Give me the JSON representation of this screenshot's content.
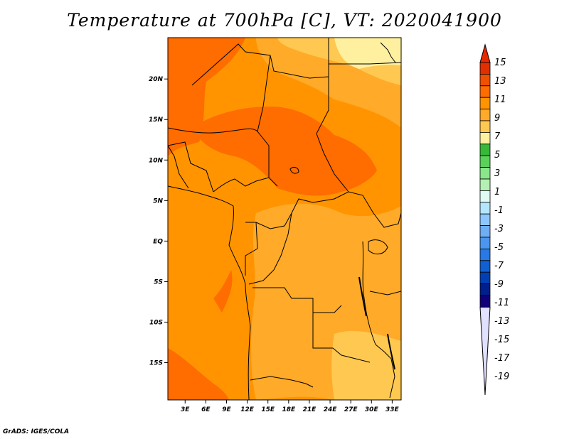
{
  "title": "Temperature at 700hPa [C], VT: 2020041900",
  "credit": "GrADS: IGES/COLA",
  "map": {
    "lat_ticks": [
      {
        "lat": 20,
        "label": "20N"
      },
      {
        "lat": 15,
        "label": "15N"
      },
      {
        "lat": 10,
        "label": "10N"
      },
      {
        "lat": 5,
        "label": "5N"
      },
      {
        "lat": 0,
        "label": "EQ"
      },
      {
        "lat": -5,
        "label": "5S"
      },
      {
        "lat": -10,
        "label": "10S"
      },
      {
        "lat": -15,
        "label": "15S"
      }
    ],
    "lon_ticks": [
      {
        "lon": 3,
        "label": "3E"
      },
      {
        "lon": 6,
        "label": "6E"
      },
      {
        "lon": 9,
        "label": "9E"
      },
      {
        "lon": 12,
        "label": "12E"
      },
      {
        "lon": 15,
        "label": "15E"
      },
      {
        "lon": 18,
        "label": "18E"
      },
      {
        "lon": 21,
        "label": "21E"
      },
      {
        "lon": 24,
        "label": "24E"
      },
      {
        "lon": 27,
        "label": "27E"
      },
      {
        "lon": 30,
        "label": "30E"
      },
      {
        "lon": 33,
        "label": "33E"
      }
    ]
  },
  "colorbar": {
    "levels": [
      "15",
      "13",
      "11",
      "9",
      "7",
      "5",
      "3",
      "1",
      "-1",
      "-3",
      "-5",
      "-7",
      "-9",
      "-11",
      "-13",
      "-15",
      "-17",
      "-19"
    ],
    "colors": [
      "#e03000",
      "#f05000",
      "#ff6c00",
      "#ff9400",
      "#ffaa28",
      "#ffc850",
      "#fff0a0",
      "#38b838",
      "#5ad25a",
      "#8ae68a",
      "#b4f0b4",
      "#e0fcf4",
      "#b4e6ff",
      "#8cc8ff",
      "#6eaef5",
      "#4a96f0",
      "#2878e6",
      "#1060d2",
      "#0040b4",
      "#001e8c",
      "#10007a"
    ],
    "top_arrow_color": "#e82800",
    "bottom_arrow_color": "#e0e0ff"
  }
}
